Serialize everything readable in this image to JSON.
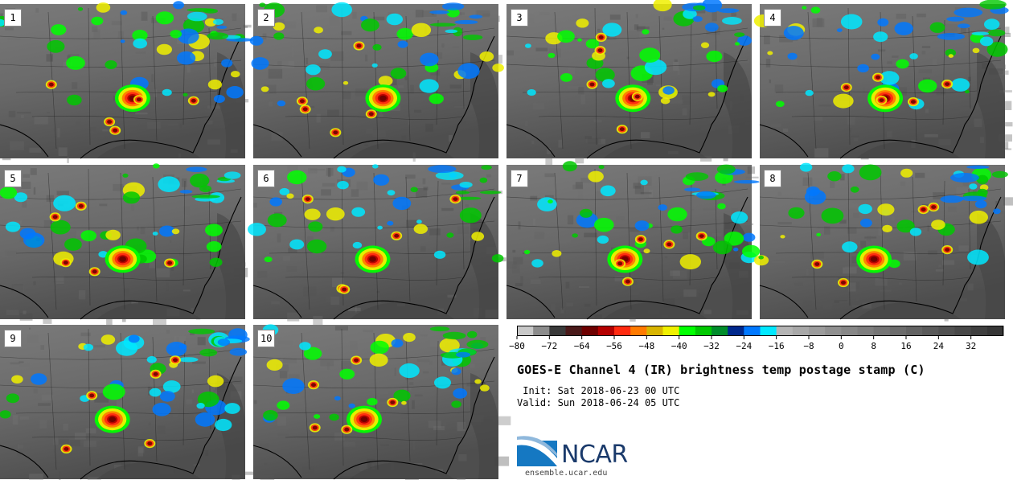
{
  "panels": [
    {
      "label": "1",
      "seed": 11
    },
    {
      "label": "2",
      "seed": 23
    },
    {
      "label": "3",
      "seed": 37
    },
    {
      "label": "4",
      "seed": 41
    },
    {
      "label": "5",
      "seed": 53
    },
    {
      "label": "6",
      "seed": 67
    },
    {
      "label": "7",
      "seed": 71
    },
    {
      "label": "8",
      "seed": 89
    },
    {
      "label": "9",
      "seed": 97
    },
    {
      "label": "10",
      "seed": 103
    }
  ],
  "chart_data": {
    "type": "heatmap",
    "title": "GOES-E Channel 4 (IR) brightness temp postage stamp (C)",
    "init": " Init: Sat 2018-06-23 00 UTC",
    "valid": "Valid: Sun 2018-06-24 05 UTC",
    "colorbar": {
      "ticks": [
        -80,
        -72,
        -64,
        -56,
        -48,
        -40,
        -32,
        -24,
        -16,
        -8,
        0,
        8,
        16,
        24,
        32
      ],
      "range": [
        -80,
        40
      ],
      "step": 4,
      "colors": [
        "#c8c8c8",
        "#8c8c8c",
        "#3a3a3a",
        "#4a1a1a",
        "#6e0000",
        "#b40000",
        "#ff2a10",
        "#ff7a00",
        "#d8b400",
        "#f0f000",
        "#00ff00",
        "#00c800",
        "#008c2a",
        "#00288c",
        "#0078ff",
        "#00e8ff",
        "#b4b4b4",
        "#a8a8a8",
        "#9c9c9c",
        "#909090",
        "#878787",
        "#7e7e7e",
        "#757575",
        "#6c6c6c",
        "#636363",
        "#5a5a5a",
        "#515151",
        "#484848",
        "#3f3f3f",
        "#363636"
      ]
    }
  },
  "footer": {
    "logo_text": "NCAR",
    "site": "ensemble.ucar.edu"
  }
}
